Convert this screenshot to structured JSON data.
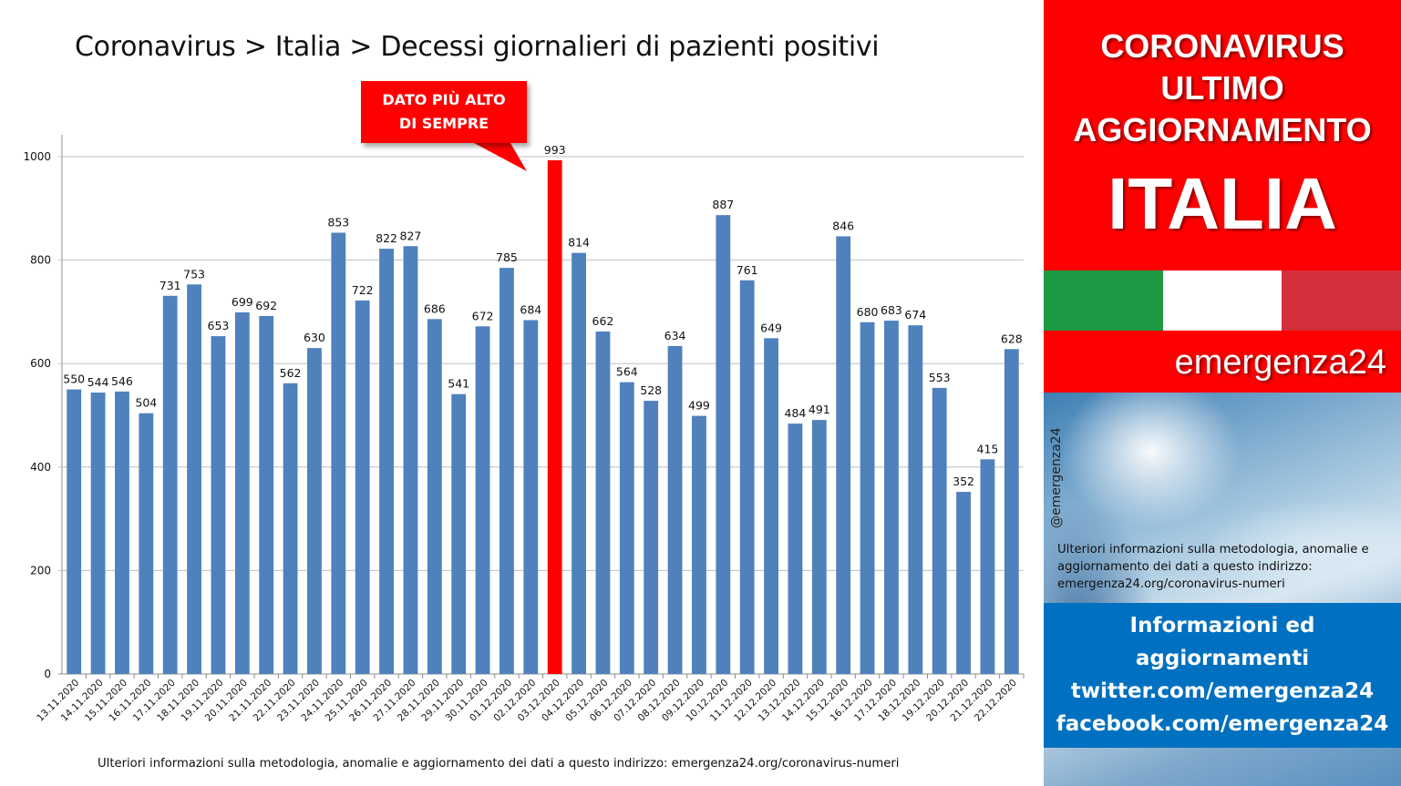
{
  "title": "Coronavirus > Italia > Decessi giornalieri di pazienti positivi",
  "callout": {
    "line1": "DATO PIÙ ALTO",
    "line2": "DI SEMPRE"
  },
  "bottom_note": "Ulteriori informazioni sulla metodologia, anomalie e aggiornamento dei dati a questo indirizzo: emergenza24.org/coronavirus-numeri",
  "colors": {
    "bar": "#4f81bd",
    "highlight": "#ff0000",
    "grid": "#bfbfbf"
  },
  "chart_data": {
    "type": "bar",
    "title": "Coronavirus > Italia > Decessi giornalieri di pazienti positivi",
    "xlabel": "",
    "ylabel": "",
    "ylim": [
      0,
      1000
    ],
    "yticks": [
      0,
      200,
      400,
      600,
      800,
      1000
    ],
    "grid": true,
    "highlight_index": 20,
    "categories": [
      "13.11.2020",
      "14.11.2020",
      "15.11.2020",
      "16.11.2020",
      "17.11.2020",
      "18.11.2020",
      "19.11.2020",
      "20.11.2020",
      "21.11.2020",
      "22.11.2020",
      "23.11.2020",
      "24.11.2020",
      "25.11.2020",
      "26.11.2020",
      "27.11.2020",
      "28.11.2020",
      "29.11.2020",
      "30.11.2020",
      "01.12.2020",
      "02.12.2020",
      "03.12.2020",
      "04.12.2020",
      "05.12.2020",
      "06.12.2020",
      "07.12.2020",
      "08.12.2020",
      "09.12.2020",
      "10.12.2020",
      "11.12.2020",
      "12.12.2020",
      "13.12.2020",
      "14.12.2020",
      "15.12.2020",
      "16.12.2020",
      "17.12.2020",
      "18.12.2020",
      "19.12.2020",
      "20.12.2020",
      "21.12.2020",
      "22.12.2020"
    ],
    "values": [
      550,
      544,
      546,
      504,
      731,
      753,
      653,
      699,
      692,
      562,
      630,
      853,
      722,
      822,
      827,
      686,
      541,
      672,
      785,
      684,
      993,
      814,
      662,
      564,
      528,
      634,
      499,
      887,
      761,
      649,
      484,
      491,
      846,
      680,
      683,
      674,
      553,
      352,
      415,
      628
    ]
  },
  "side": {
    "line1": "CORONAVIRUS",
    "line2": "ULTIMO",
    "line3": "AGGIORNAMENTO",
    "country": "ITALIA",
    "brand": "emergenza24",
    "handle": "@emergenza24",
    "note": "Ulteriori informazioni sulla metodologia, anomalie e aggiornamento dei dati a questo indirizzo: emergenza24.org/coronavirus-numeri",
    "blue_lines": [
      "Informazioni ed",
      "aggiornamenti",
      "twitter.com/emergenza24",
      "facebook.com/emergenza24"
    ]
  }
}
